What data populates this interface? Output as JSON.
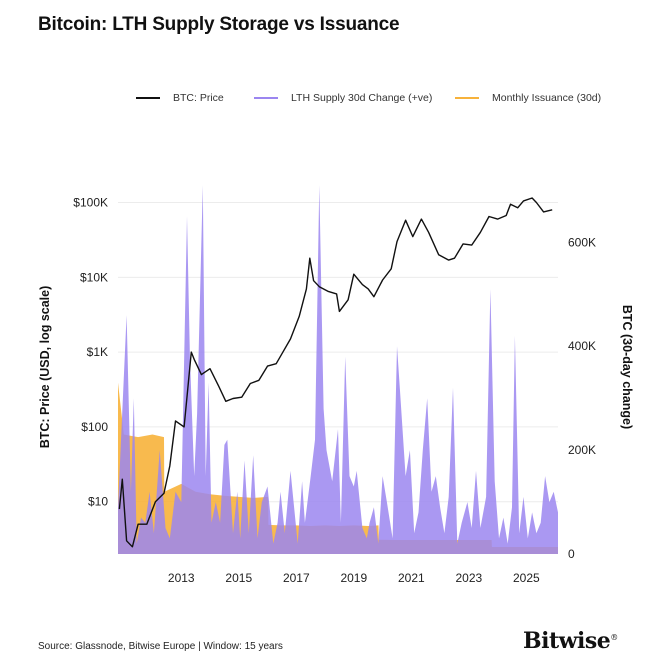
{
  "title": "Bitcoin: LTH Supply Storage vs Issuance",
  "legend": [
    {
      "label": "BTC: Price",
      "color": "#111111"
    },
    {
      "label": "LTH Supply 30d Change (+ve)",
      "color": "#9b86f0"
    },
    {
      "label": "Monthly Issuance (30d)",
      "color": "#f7b23b"
    }
  ],
  "source": "Source: Glassnode, Bitwise Europe | Window: 15 years",
  "brand": "Bitwise",
  "brand_mark": "®",
  "chart_data": {
    "type": "line",
    "title": "Bitcoin: LTH Supply Storage vs Issuance",
    "x_ticks": [
      "2013",
      "2015",
      "2017",
      "2019",
      "2021",
      "2023",
      "2025"
    ],
    "x_range": [
      2011.3,
      2026.6
    ],
    "left_axis": {
      "label": "BTC: Price (USD, log scale)",
      "scale": "log",
      "range": [
        2,
        200000
      ],
      "ticks": [
        {
          "v": 10,
          "label": "$10"
        },
        {
          "v": 100,
          "label": "$100"
        },
        {
          "v": 1000,
          "label": "$1K"
        },
        {
          "v": 10000,
          "label": "$10K"
        },
        {
          "v": 100000,
          "label": "$100K"
        }
      ]
    },
    "right_axis": {
      "label": "BTC (30-day change)",
      "scale": "linear",
      "range": [
        0,
        720000
      ],
      "ticks": [
        {
          "v": 0,
          "label": "0"
        },
        {
          "v": 200000,
          "label": "200K"
        },
        {
          "v": 400000,
          "label": "400K"
        },
        {
          "v": 600000,
          "label": "600K"
        }
      ]
    },
    "grid": true,
    "legend_position": "top",
    "series": [
      {
        "name": "BTC: Price",
        "axis": "left",
        "color": "#111111",
        "x": [
          2011.35,
          2011.45,
          2011.6,
          2011.8,
          2012.0,
          2012.3,
          2012.6,
          2012.9,
          2013.1,
          2013.3,
          2013.6,
          2013.85,
          2013.95,
          2014.2,
          2014.5,
          2014.8,
          2015.05,
          2015.3,
          2015.6,
          2015.9,
          2016.2,
          2016.5,
          2016.8,
          2017.0,
          2017.3,
          2017.6,
          2017.85,
          2017.97,
          2018.1,
          2018.3,
          2018.6,
          2018.9,
          2019.0,
          2019.3,
          2019.5,
          2019.8,
          2020.0,
          2020.2,
          2020.5,
          2020.8,
          2021.0,
          2021.3,
          2021.55,
          2021.85,
          2022.1,
          2022.45,
          2022.8,
          2023.0,
          2023.3,
          2023.6,
          2023.9,
          2024.2,
          2024.5,
          2024.8,
          2024.95,
          2025.2,
          2025.4,
          2025.7,
          2025.85,
          2026.1,
          2026.4
        ],
        "values": [
          8,
          20,
          3,
          2.5,
          5,
          5,
          10,
          13,
          30,
          120,
          100,
          1000,
          800,
          500,
          600,
          350,
          220,
          240,
          250,
          380,
          420,
          650,
          700,
          950,
          1500,
          3000,
          7000,
          18000,
          9000,
          7500,
          6500,
          6000,
          3500,
          5000,
          11000,
          8000,
          7000,
          5500,
          9200,
          13000,
          30000,
          58000,
          35000,
          60000,
          40000,
          20000,
          17000,
          18000,
          28000,
          27000,
          40000,
          65000,
          60000,
          67000,
          95000,
          85000,
          105000,
          115000,
          100000,
          75000,
          80000
        ]
      },
      {
        "name": "LTH Supply 30d Change (+ve)",
        "axis": "right",
        "color": "#9b86f0",
        "x": [
          2011.3,
          2011.6,
          2011.75,
          2011.85,
          2011.95,
          2012.1,
          2012.25,
          2012.4,
          2012.55,
          2012.75,
          2012.95,
          2013.1,
          2013.3,
          2013.5,
          2013.7,
          2013.8,
          2013.95,
          2014.05,
          2014.25,
          2014.35,
          2014.45,
          2014.55,
          2014.7,
          2014.85,
          2015.0,
          2015.1,
          2015.3,
          2015.45,
          2015.55,
          2015.7,
          2015.85,
          2016.0,
          2016.15,
          2016.3,
          2016.5,
          2016.7,
          2016.85,
          2016.95,
          2017.1,
          2017.3,
          2017.55,
          2017.7,
          2017.8,
          2018.0,
          2018.15,
          2018.3,
          2018.45,
          2018.55,
          2018.75,
          2018.95,
          2019.05,
          2019.2,
          2019.35,
          2019.5,
          2019.6,
          2019.8,
          2019.95,
          2020.05,
          2020.2,
          2020.35,
          2020.5,
          2020.65,
          2020.85,
          2021.0,
          2021.1,
          2021.3,
          2021.45,
          2021.6,
          2021.75,
          2021.9,
          2022.05,
          2022.2,
          2022.35,
          2022.5,
          2022.65,
          2022.8,
          2022.95,
          2023.1,
          2023.25,
          2023.45,
          2023.6,
          2023.75,
          2023.9,
          2024.1,
          2024.25,
          2024.4,
          2024.55,
          2024.7,
          2024.85,
          2025.0,
          2025.1,
          2025.25,
          2025.4,
          2025.55,
          2025.7,
          2025.85,
          2026.0,
          2026.15,
          2026.3,
          2026.45,
          2026.6
        ],
        "values": [
          90000,
          460000,
          120000,
          300000,
          20000,
          70000,
          60000,
          120000,
          40000,
          200000,
          50000,
          30000,
          120000,
          100000,
          650000,
          380000,
          150000,
          270000,
          710000,
          150000,
          330000,
          60000,
          100000,
          60000,
          210000,
          220000,
          40000,
          120000,
          30000,
          180000,
          40000,
          190000,
          30000,
          100000,
          130000,
          20000,
          60000,
          120000,
          40000,
          160000,
          20000,
          140000,
          60000,
          150000,
          220000,
          710000,
          280000,
          200000,
          140000,
          240000,
          60000,
          380000,
          150000,
          130000,
          160000,
          50000,
          30000,
          60000,
          90000,
          20000,
          150000,
          100000,
          30000,
          400000,
          320000,
          150000,
          200000,
          40000,
          80000,
          200000,
          300000,
          120000,
          150000,
          90000,
          40000,
          110000,
          320000,
          20000,
          60000,
          100000,
          50000,
          160000,
          50000,
          110000,
          510000,
          140000,
          30000,
          70000,
          20000,
          90000,
          420000,
          40000,
          110000,
          30000,
          80000,
          40000,
          60000,
          150000,
          100000,
          120000,
          80000
        ]
      },
      {
        "name": "Monthly Issuance (30d)",
        "axis": "right",
        "color": "#f7b23b",
        "x": [
          2011.3,
          2011.5,
          2012.0,
          2012.5,
          2012.9,
          2012.91,
          2013.5,
          2014.0,
          2014.5,
          2015.0,
          2015.5,
          2016.0,
          2016.52,
          2016.53,
          2017.0,
          2017.5,
          2018.0,
          2018.5,
          2019.0,
          2019.5,
          2020.0,
          2020.36,
          2020.37,
          2021.0,
          2022.0,
          2023.0,
          2024.0,
          2024.29,
          2024.3,
          2025.0,
          2026.0,
          2026.6
        ],
        "values": [
          330000,
          230000,
          225000,
          230000,
          225000,
          120000,
          135000,
          120000,
          115000,
          112000,
          110000,
          108000,
          110000,
          56000,
          55000,
          55000,
          54000,
          55000,
          54000,
          55000,
          54000,
          55000,
          27500,
          27000,
          27000,
          27000,
          27000,
          27000,
          13500,
          13500,
          13500,
          13500
        ]
      }
    ]
  }
}
